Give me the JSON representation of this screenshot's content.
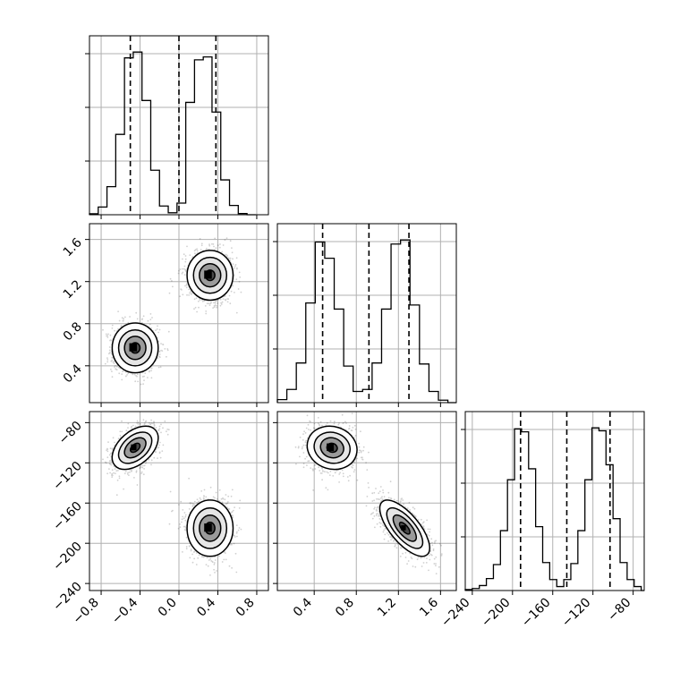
{
  "chart_data": {
    "type": "corner",
    "parameters": [
      {
        "xlim": [
          -0.92,
          0.92
        ],
        "ticks": [
          -0.8,
          -0.4,
          0.0,
          0.4,
          0.8
        ],
        "tick_labels": [
          "−0.8",
          "−0.4",
          "0.0",
          "0.4",
          "0.8"
        ],
        "quantiles": [
          -0.5,
          0.0,
          0.38
        ],
        "histogram": {
          "bin_edges": [
            -0.92,
            -0.83,
            -0.74,
            -0.65,
            -0.56,
            -0.47,
            -0.38,
            -0.29,
            -0.2,
            -0.11,
            -0.02,
            0.07,
            0.16,
            0.25,
            0.34,
            0.43,
            0.52,
            0.61,
            0.7,
            0.79
          ],
          "counts": [
            5,
            40,
            145,
            415,
            810,
            840,
            590,
            230,
            45,
            10,
            60,
            580,
            800,
            815,
            530,
            180,
            48,
            6,
            0
          ]
        }
      },
      {
        "xlim": [
          0.05,
          1.75
        ],
        "ticks": [
          0.4,
          0.8,
          1.2,
          1.6
        ],
        "tick_labels": [
          "0.4",
          "0.8",
          "1.2",
          "1.6"
        ],
        "quantiles": [
          0.48,
          0.92,
          1.3
        ],
        "histogram": {
          "bin_edges": [
            0.05,
            0.14,
            0.23,
            0.32,
            0.41,
            0.5,
            0.59,
            0.68,
            0.77,
            0.86,
            0.95,
            1.04,
            1.13,
            1.22,
            1.31,
            1.4,
            1.49,
            1.58,
            1.67,
            1.75
          ],
          "counts": [
            15,
            65,
            195,
            490,
            790,
            710,
            460,
            180,
            55,
            65,
            195,
            460,
            780,
            800,
            480,
            190,
            55,
            12,
            0
          ]
        }
      },
      {
        "xlim": [
          -247,
          -69
        ],
        "ticks": [
          -240,
          -200,
          -160,
          -120,
          -80
        ],
        "tick_labels": [
          "−240",
          "−200",
          "−160",
          "−120",
          "−80"
        ],
        "quantiles": [
          -192,
          -146,
          -103
        ],
        "histogram": {
          "bin_edges": [
            -247,
            -240,
            -233,
            -226,
            -219,
            -212,
            -205,
            -198,
            -191,
            -184,
            -177,
            -170,
            -163,
            -156,
            -149,
            -142,
            -135,
            -128,
            -121,
            -114,
            -107,
            -100,
            -93,
            -86,
            -79,
            -72,
            -69
          ],
          "counts": [
            5,
            10,
            25,
            60,
            130,
            300,
            555,
            810,
            795,
            610,
            320,
            140,
            55,
            20,
            55,
            135,
            300,
            555,
            815,
            800,
            630,
            360,
            140,
            55,
            20,
            0
          ]
        }
      }
    ],
    "modes": [
      {
        "center": [
          -0.45,
          0.57,
          -105
        ],
        "sd": [
          0.11,
          0.11,
          10
        ],
        "corr": {
          "1,0": 0.0,
          "2,0": 0.45,
          "2,1": -0.1
        }
      },
      {
        "center": [
          0.32,
          1.26,
          -185
        ],
        "sd": [
          0.11,
          0.11,
          13
        ],
        "corr": {
          "1,0": 0.0,
          "2,0": 0.0,
          "2,1": -0.7
        }
      }
    ],
    "grid": true,
    "colors": {
      "line": "#000000",
      "quantile": "#000000",
      "grid": "#b0b0b0",
      "scatter": "#000000"
    }
  }
}
